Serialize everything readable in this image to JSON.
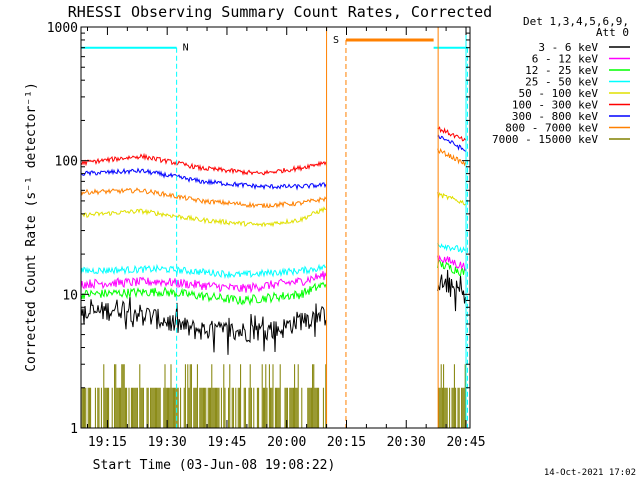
{
  "chart_data": {
    "type": "line",
    "title": "RHESSI Observing Summary Count Rates, Corrected",
    "xlabel": "Start Time (03-Jun-08 19:08:22)",
    "ylabel": "Corrected Count Rate (s⁻¹ detector⁻¹)",
    "y_scale": "log",
    "ylim": [
      1,
      1000
    ],
    "xlim": [
      "19:08:22",
      "20:46:00"
    ],
    "x_ticks": [
      "19:15",
      "19:30",
      "19:45",
      "20:00",
      "20:15",
      "20:30",
      "20:45"
    ],
    "y_ticks": [
      "1",
      "10",
      "100",
      "1000"
    ],
    "legend_header": [
      "Det 1,3,4,5,6,9,",
      "Att 0"
    ],
    "legend_position": "right",
    "timestamp": "14-Oct-2021 17:02",
    "segments": [
      {
        "start": "19:08:22",
        "end": "20:10:00"
      },
      {
        "start": "20:38:00",
        "end": "20:45:00"
      }
    ],
    "series": [
      {
        "name": "3 - 6 keV",
        "color": "#000000",
        "before": [
          [
            0,
            7
          ],
          [
            10,
            8
          ],
          [
            20,
            6.5
          ],
          [
            28,
            5.5
          ],
          [
            40,
            5.3
          ],
          [
            50,
            5.5
          ],
          [
            55,
            6.5
          ],
          [
            61.5,
            7
          ]
        ],
        "after": [
          [
            89.5,
            12.5
          ],
          [
            96.5,
            10
          ]
        ]
      },
      {
        "name": "6 - 12 keV",
        "color": "#ff00ff",
        "before": [
          [
            0,
            12
          ],
          [
            20,
            12.5
          ],
          [
            40,
            11
          ],
          [
            55,
            12.5
          ],
          [
            61.5,
            14
          ]
        ],
        "after": [
          [
            89.5,
            19
          ],
          [
            96.5,
            16
          ]
        ]
      },
      {
        "name": "12 - 25 keV",
        "color": "#00ff00",
        "before": [
          [
            0,
            10
          ],
          [
            20,
            10.5
          ],
          [
            40,
            9
          ],
          [
            55,
            10
          ],
          [
            61.5,
            12
          ]
        ],
        "after": [
          [
            89.5,
            17
          ],
          [
            96.5,
            14.5
          ]
        ]
      },
      {
        "name": "25 - 50 keV",
        "color": "#00ffff",
        "before": [
          [
            0,
            15
          ],
          [
            20,
            15.5
          ],
          [
            40,
            14
          ],
          [
            55,
            15
          ],
          [
            61.5,
            16
          ]
        ],
        "after": [
          [
            89.5,
            24
          ],
          [
            96.5,
            21
          ]
        ]
      },
      {
        "name": "50 - 100 keV",
        "color": "#e0e000",
        "before": [
          [
            0,
            39
          ],
          [
            15,
            42
          ],
          [
            30,
            36
          ],
          [
            45,
            33
          ],
          [
            55,
            36
          ],
          [
            61.5,
            44
          ]
        ],
        "after": [
          [
            89.5,
            56
          ],
          [
            96.5,
            48
          ]
        ]
      },
      {
        "name": "100 - 300 keV",
        "color": "#ff0000",
        "before": [
          [
            0,
            96
          ],
          [
            15,
            108
          ],
          [
            30,
            88
          ],
          [
            45,
            80
          ],
          [
            55,
            88
          ],
          [
            61.5,
            98
          ]
        ],
        "after": [
          [
            89.5,
            175
          ],
          [
            96.5,
            140
          ]
        ]
      },
      {
        "name": "300 - 800 keV",
        "color": "#0000ff",
        "before": [
          [
            0,
            80
          ],
          [
            15,
            84
          ],
          [
            30,
            70
          ],
          [
            45,
            64
          ],
          [
            55,
            64
          ],
          [
            61.5,
            66
          ]
        ],
        "after": [
          [
            89.5,
            155
          ],
          [
            96.5,
            118
          ]
        ]
      },
      {
        "name": "800 - 7000 keV",
        "color": "#ff8000",
        "before": [
          [
            0,
            58
          ],
          [
            15,
            60
          ],
          [
            30,
            50
          ],
          [
            45,
            46
          ],
          [
            55,
            48
          ],
          [
            61.5,
            52
          ]
        ],
        "after": [
          [
            89.5,
            120
          ],
          [
            96.5,
            94
          ]
        ]
      },
      {
        "name": "7000 - 15000 keV",
        "color": "#808000",
        "before": [
          [
            0,
            1.5
          ],
          [
            61.5,
            1.5
          ]
        ],
        "after": [
          [
            89.5,
            1.5
          ],
          [
            96.5,
            1.5
          ]
        ]
      }
    ],
    "annotations": [
      {
        "label": "N",
        "color": "#00ffff",
        "level": 700,
        "x_start": 0,
        "x_end": 24,
        "marker_x": 24
      },
      {
        "label": "S",
        "color": "#ff8000",
        "level": 800,
        "x_start": 66.5,
        "x_end": 88.5,
        "marker_x": 66.5
      },
      {
        "label": "",
        "color": "#00ffff",
        "level": 700,
        "x_start": 88.5,
        "x_end": 97,
        "marker_x": 97
      }
    ],
    "background_color": "#ffffff",
    "axis_color": "#000000"
  }
}
